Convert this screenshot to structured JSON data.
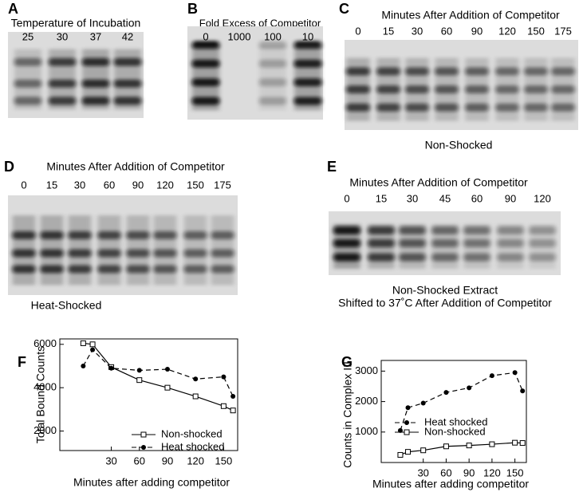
{
  "panels": {
    "A": {
      "letter": "A",
      "title": "Temperature of Incubation",
      "lanes": [
        "25",
        "30",
        "37",
        "42"
      ]
    },
    "B": {
      "letter": "B",
      "title": "Fold Excess of Competitor",
      "lanes": [
        "0",
        "1000",
        "100",
        "10"
      ]
    },
    "C": {
      "letter": "C",
      "title": "Minutes After Addition of Competitor",
      "lanes": [
        "0",
        "15",
        "30",
        "60",
        "90",
        "120",
        "150",
        "175"
      ],
      "caption": [
        "Non-Shocked"
      ]
    },
    "D": {
      "letter": "D",
      "title": "Minutes After Addition of Competitor",
      "lanes": [
        "0",
        "15",
        "30",
        "60",
        "90",
        "120",
        "150",
        "175"
      ],
      "caption": [
        "Heat-Shocked"
      ]
    },
    "E": {
      "letter": "E",
      "title": "Minutes After Addition of Competitor",
      "lanes": [
        "0",
        "15",
        "30",
        "45",
        "60",
        "90",
        "120"
      ],
      "caption": [
        "Non-Shocked Extract",
        "Shifted to 37˚C After Addition of Competitor"
      ]
    }
  },
  "chart_data": [
    {
      "type": "line",
      "panel": "F",
      "x_label": "Minutes after adding competitor",
      "y_label": "Total Bound Counts",
      "xlim": [
        -25,
        165
      ],
      "ylim": [
        1100,
        6250
      ],
      "xticks": [
        30,
        60,
        90,
        120,
        150
      ],
      "yticks": [
        2000,
        4000,
        6000
      ],
      "x": [
        0,
        10,
        30,
        60,
        90,
        120,
        150,
        160
      ],
      "series": [
        {
          "name": "Non-shocked",
          "color": "#000000",
          "marker": "square",
          "dash": false,
          "values": [
            6050,
            6000,
            4950,
            4350,
            4000,
            3600,
            3150,
            2950
          ]
        },
        {
          "name": "Heat shocked",
          "color": "#000000",
          "marker": "circle",
          "dash": true,
          "values": [
            5000,
            5750,
            4900,
            4800,
            4850,
            4400,
            4500,
            3600
          ]
        }
      ]
    },
    {
      "type": "line",
      "panel": "G",
      "x_label": "Minutes after adding competitor",
      "y_label": "Counts in Complex III",
      "xlim": [
        -25,
        165
      ],
      "ylim": [
        0,
        3350
      ],
      "xticks": [
        30,
        60,
        90,
        120,
        150
      ],
      "yticks": [
        1000,
        2000,
        3000
      ],
      "x": [
        0,
        10,
        30,
        60,
        90,
        120,
        150,
        160
      ],
      "series": [
        {
          "name": "Non-shocked",
          "color": "#000000",
          "marker": "square",
          "dash": false,
          "values": [
            250,
            350,
            400,
            530,
            560,
            600,
            650,
            640
          ]
        },
        {
          "name": "Heat shocked",
          "color": "#000000",
          "marker": "circle",
          "dash": true,
          "values": [
            1050,
            1800,
            1950,
            2300,
            2450,
            2850,
            2950,
            2350
          ]
        }
      ]
    }
  ]
}
